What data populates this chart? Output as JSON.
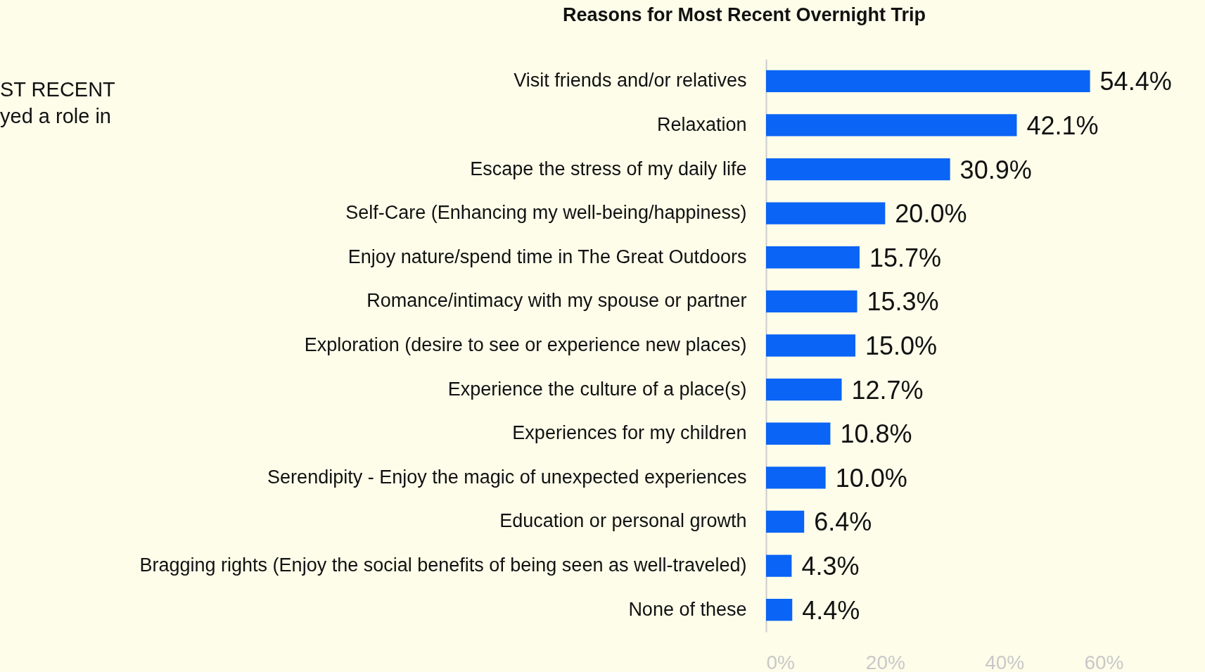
{
  "chart_data": {
    "type": "bar",
    "orientation": "horizontal",
    "title": "Reasons for Most Recent Overnight Trip",
    "categories": [
      "Visit friends and/or relatives",
      "Relaxation",
      "Escape the stress of my daily life",
      "Self-Care (Enhancing my well-being/happiness)",
      "Enjoy nature/spend time in The Great Outdoors",
      "Romance/intimacy with my spouse or partner",
      "Exploration (desire to see or experience new places)",
      "Experience the culture of a place(s)",
      "Experiences for my children",
      "Serendipity - Enjoy the magic of unexpected experiences",
      "Education or personal growth",
      "Bragging rights (Enjoy the social benefits of being seen as well-traveled)",
      "None of these"
    ],
    "values": [
      54.4,
      42.1,
      30.9,
      20.0,
      15.7,
      15.3,
      15.0,
      12.7,
      10.8,
      10.0,
      6.4,
      4.3,
      4.4
    ],
    "value_labels": [
      "54.4%",
      "42.1%",
      "30.9%",
      "20.0%",
      "15.7%",
      "15.3%",
      "15.0%",
      "12.7%",
      "10.8%",
      "10.0%",
      "6.4%",
      "4.3%",
      "4.4%"
    ],
    "color": "#0a64f5",
    "xlim": [
      0,
      60
    ],
    "xticks": [
      {
        "value": 0,
        "label": "0%"
      },
      {
        "value": 20,
        "label": "20%"
      },
      {
        "value": 40,
        "label": "40%"
      },
      {
        "value": 60,
        "label": "60%"
      }
    ],
    "grid": false,
    "annotations": [
      "ST RECENT",
      "yed a role in"
    ]
  }
}
